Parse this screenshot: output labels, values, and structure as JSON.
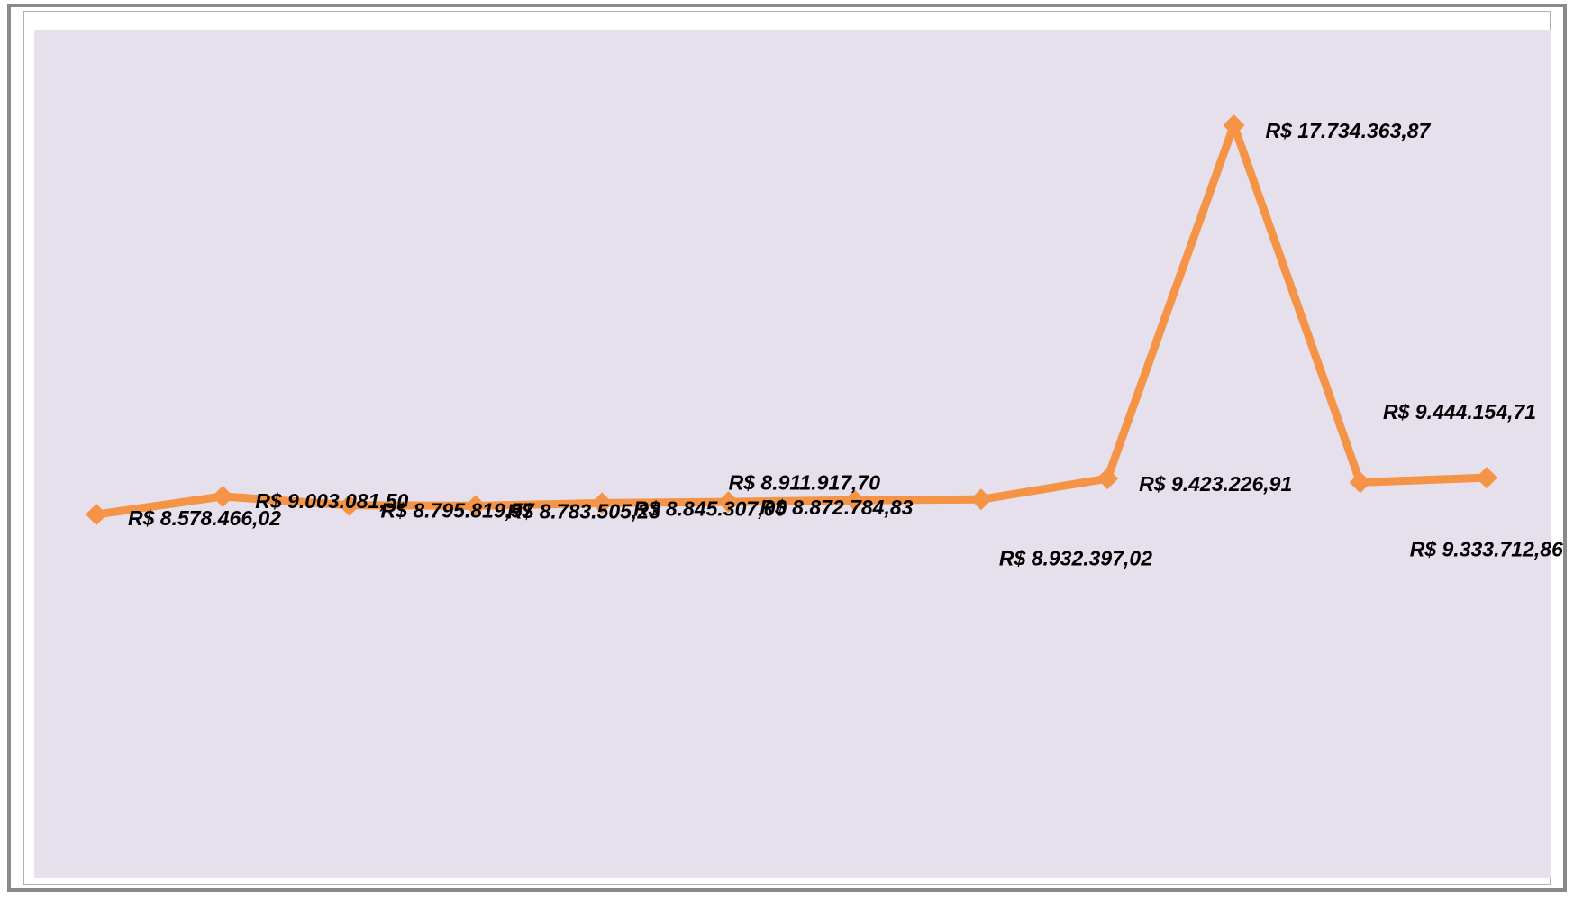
{
  "chart_data": {
    "type": "line",
    "title": "",
    "xlabel": "",
    "ylabel": "",
    "x": [
      1,
      2,
      3,
      4,
      5,
      6,
      7,
      8,
      9,
      10,
      11,
      12
    ],
    "series": [
      {
        "values": [
          8578466.02,
          9003081.5,
          8795819.57,
          8783505.23,
          8845307.0,
          8872784.83,
          8911917.7,
          8932397.02,
          9423226.91,
          17734363.87,
          9333712.86,
          9444154.71
        ],
        "labels": [
          "R$ 8.578.466,02",
          "R$ 9.003.081,50",
          "R$ 8.795.819,57",
          "R$ 8.783.505,23",
          "R$ 8.845.307,00",
          "R$ 8.872.784,83",
          "R$ 8.911.917,70",
          "R$ 8.932.397,02",
          "R$ 9.423.226,91",
          "R$ 17.734.363,87",
          "R$ 9.333.712,86",
          "R$ 9.444.154,71"
        ],
        "color": "#f59446",
        "marker": "diamond"
      }
    ],
    "grid": false,
    "legend": "none",
    "ylim": [
      0,
      20000000
    ],
    "plot_background": "#e6e0ec"
  }
}
